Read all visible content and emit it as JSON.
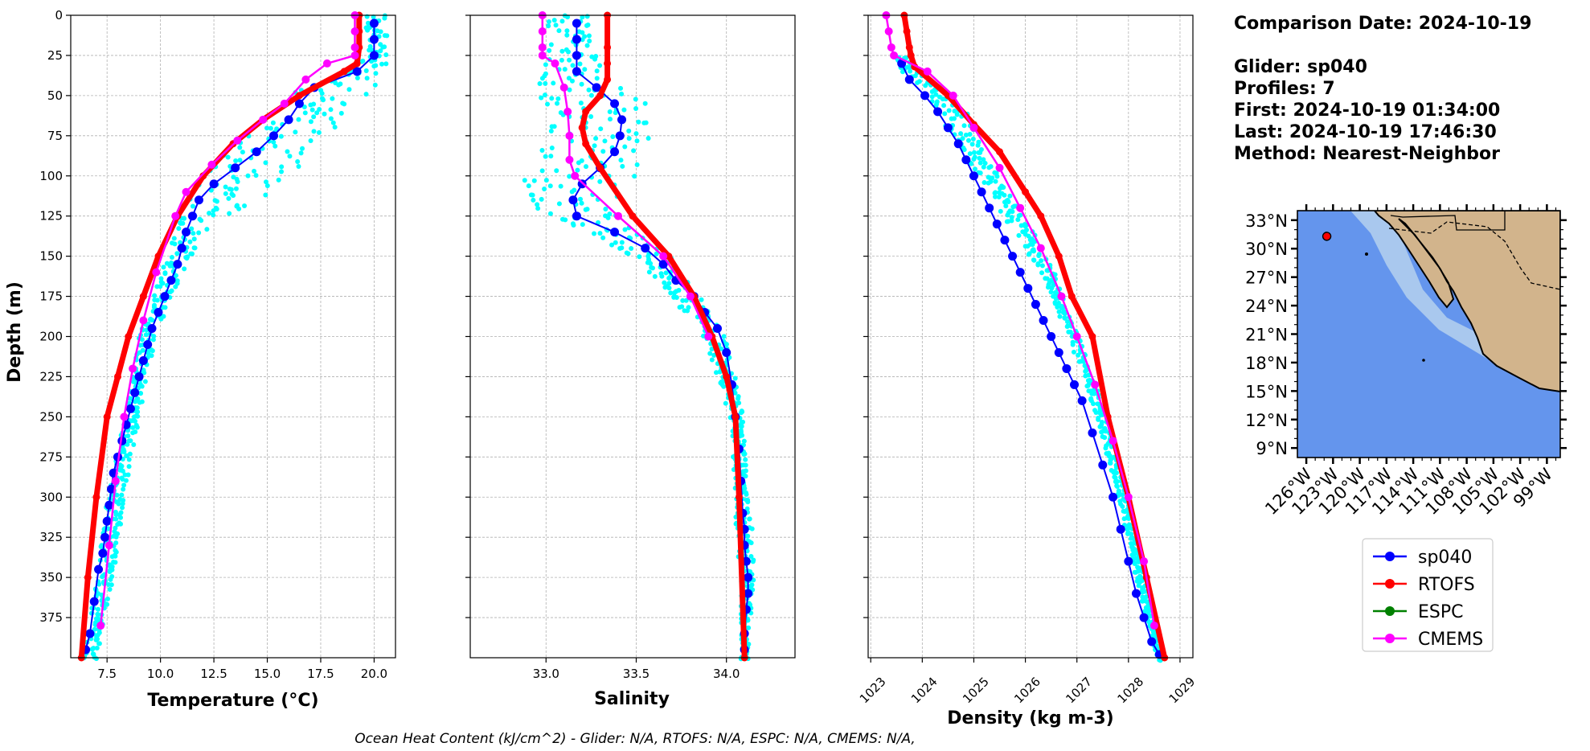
{
  "info": {
    "comparison_date": "Comparison Date: 2024-10-19",
    "glider": "Glider: sp040",
    "profiles": "Profiles: 7",
    "first": "First: 2024-10-19 01:34:00",
    "last": "Last: 2024-10-19 17:46:30",
    "method": "Method: Nearest-Neighbor"
  },
  "footer": "Ocean Heat Content (kJ/cm^2) - Glider: N/A,  RTOFS: N/A,  ESPC: N/A,  CMEMS: N/A,",
  "legend": [
    {
      "name": "sp040",
      "color": "#0000ff"
    },
    {
      "name": "RTOFS",
      "color": "#ff0000"
    },
    {
      "name": "ESPC",
      "color": "#008000"
    },
    {
      "name": "CMEMS",
      "color": "#ff00ff"
    }
  ],
  "colors": {
    "glider_raw": "#00ffff",
    "glider_mean": "#0000ff",
    "rtofs": "#ff0000",
    "cmems": "#ff00ff",
    "ocean": "#6495ed",
    "land": "#d2b48c",
    "shelf": "#a9c8ee"
  },
  "map": {
    "lat_ticks": [
      "33°N",
      "30°N",
      "27°N",
      "24°N",
      "21°N",
      "18°N",
      "15°N",
      "12°N",
      "9°N"
    ],
    "lon_ticks": [
      "126°W",
      "123°W",
      "120°W",
      "117°W",
      "114°W",
      "111°W",
      "108°W",
      "105°W",
      "102°W",
      "99°W"
    ],
    "lat_range": [
      8,
      34
    ],
    "lon_range": [
      -127,
      -97.5
    ],
    "glider_position": {
      "lon": -123.7,
      "lat": 31.3
    }
  },
  "chart_data": [
    {
      "type": "line",
      "xlabel": "Temperature (°C)",
      "ylabel": "Depth (m)",
      "xlim": [
        5.8,
        21.0
      ],
      "ylim": [
        400,
        0
      ],
      "xticks": [
        7.5,
        10.0,
        12.5,
        15.0,
        17.5,
        20.0
      ],
      "yticks": [
        0,
        25,
        50,
        75,
        100,
        125,
        150,
        175,
        200,
        225,
        250,
        275,
        300,
        325,
        350,
        375
      ],
      "grid": true,
      "glider_raw_range": [
        [
          0,
          19.6,
          20.6
        ],
        [
          25,
          19.6,
          20.6
        ],
        [
          35,
          18.5,
          20.6
        ],
        [
          45,
          16.5,
          20.0
        ],
        [
          55,
          15.5,
          19.0
        ],
        [
          65,
          14.8,
          18.5
        ],
        [
          75,
          14.0,
          17.8
        ],
        [
          85,
          13.0,
          17.2
        ],
        [
          95,
          12.0,
          16.8
        ],
        [
          105,
          11.8,
          16.0
        ],
        [
          115,
          11.2,
          14.5
        ],
        [
          125,
          11.0,
          13.0
        ],
        [
          140,
          10.5,
          11.8
        ],
        [
          160,
          10.0,
          11.0
        ],
        [
          180,
          9.5,
          10.3
        ],
        [
          200,
          9.0,
          9.8
        ],
        [
          250,
          8.3,
          9.0
        ],
        [
          300,
          7.5,
          8.3
        ],
        [
          350,
          7.0,
          7.8
        ],
        [
          400,
          6.4,
          7.0
        ]
      ],
      "series": [
        {
          "name": "sp040",
          "role": "mean",
          "x": [
            20.0,
            20.0,
            20.0,
            19.2,
            17.2,
            16.5,
            16.0,
            15.3,
            14.5,
            13.5,
            12.5,
            11.8,
            11.5,
            11.2,
            11.0,
            10.8,
            10.5,
            10.2,
            9.9,
            9.6,
            9.4,
            9.2,
            9.0,
            8.8,
            8.6,
            8.4,
            8.2,
            8.0,
            7.8,
            7.7,
            7.6,
            7.5,
            7.4,
            7.3,
            7.1,
            6.9,
            6.7,
            6.5
          ],
          "y": [
            5,
            15,
            25,
            35,
            45,
            55,
            65,
            75,
            85,
            95,
            105,
            115,
            125,
            135,
            145,
            155,
            165,
            175,
            185,
            195,
            205,
            215,
            225,
            235,
            245,
            255,
            265,
            275,
            285,
            295,
            305,
            315,
            325,
            335,
            345,
            365,
            385,
            395
          ]
        },
        {
          "name": "RTOFS",
          "x": [
            19.3,
            19.3,
            19.3,
            19.2,
            18.6,
            16.5,
            14.8,
            13.4,
            12.0,
            10.8,
            9.9,
            9.2,
            8.5,
            8.0,
            7.5,
            7.0,
            6.6,
            6.3
          ],
          "y": [
            0,
            10,
            20,
            30,
            35,
            50,
            65,
            80,
            100,
            125,
            150,
            175,
            200,
            225,
            250,
            300,
            350,
            400
          ]
        },
        {
          "name": "CMEMS",
          "x": [
            19.1,
            19.1,
            19.1,
            19.1,
            17.8,
            16.8,
            15.8,
            14.8,
            13.6,
            12.4,
            11.2,
            10.7,
            9.8,
            9.2,
            8.7,
            8.3,
            7.9,
            7.6,
            7.2
          ],
          "y": [
            0,
            10,
            20,
            25,
            30,
            40,
            55,
            65,
            78,
            93,
            110,
            125,
            160,
            190,
            220,
            250,
            290,
            330,
            380
          ]
        }
      ]
    },
    {
      "type": "line",
      "xlabel": "Salinity",
      "ylabel": "",
      "xlim": [
        32.58,
        34.38
      ],
      "ylim": [
        400,
        0
      ],
      "xticks": [
        33.0,
        33.5,
        34.0
      ],
      "yticks": [
        0,
        25,
        50,
        75,
        100,
        125,
        150,
        175,
        200,
        225,
        250,
        275,
        300,
        325,
        350,
        375
      ],
      "grid": true,
      "glider_raw_range": [
        [
          0,
          33.0,
          33.25
        ],
        [
          25,
          33.0,
          33.3
        ],
        [
          40,
          32.95,
          33.3
        ],
        [
          50,
          32.95,
          33.55
        ],
        [
          60,
          33.05,
          33.55
        ],
        [
          75,
          33.0,
          33.6
        ],
        [
          90,
          32.95,
          33.55
        ],
        [
          100,
          32.85,
          33.5
        ],
        [
          110,
          32.9,
          33.4
        ],
        [
          120,
          32.95,
          33.35
        ],
        [
          135,
          33.2,
          33.55
        ],
        [
          150,
          33.5,
          33.7
        ],
        [
          175,
          33.7,
          33.85
        ],
        [
          200,
          33.88,
          34.0
        ],
        [
          250,
          34.02,
          34.1
        ],
        [
          300,
          34.05,
          34.12
        ],
        [
          320,
          34.05,
          34.15
        ],
        [
          350,
          34.08,
          34.15
        ],
        [
          400,
          34.08,
          34.12
        ]
      ],
      "series": [
        {
          "name": "sp040",
          "role": "mean",
          "x": [
            33.17,
            33.17,
            33.17,
            33.17,
            33.28,
            33.38,
            33.42,
            33.41,
            33.38,
            33.3,
            33.2,
            33.15,
            33.17,
            33.38,
            33.55,
            33.65,
            33.72,
            33.82,
            33.88,
            33.95,
            34.0,
            34.03,
            34.05,
            34.07,
            34.08,
            34.09,
            34.1,
            34.1,
            34.11,
            34.12,
            34.12,
            34.11,
            34.1,
            34.1
          ],
          "y": [
            5,
            15,
            25,
            35,
            45,
            55,
            65,
            75,
            85,
            95,
            105,
            115,
            125,
            135,
            145,
            155,
            165,
            175,
            185,
            195,
            210,
            230,
            250,
            270,
            290,
            310,
            320,
            330,
            340,
            350,
            360,
            370,
            385,
            395
          ]
        },
        {
          "name": "RTOFS",
          "x": [
            33.34,
            33.34,
            33.34,
            33.34,
            33.3,
            33.22,
            33.2,
            33.22,
            33.3,
            33.48,
            33.68,
            33.82,
            33.92,
            34.0,
            34.05,
            34.07,
            34.1
          ],
          "y": [
            0,
            20,
            30,
            40,
            50,
            60,
            70,
            80,
            95,
            125,
            150,
            175,
            200,
            225,
            250,
            300,
            400
          ]
        },
        {
          "name": "CMEMS",
          "x": [
            32.98,
            32.98,
            32.98,
            32.98,
            33.05,
            33.1,
            33.12,
            33.13,
            33.13,
            33.16,
            33.4,
            33.65,
            33.8,
            33.9
          ],
          "y": [
            0,
            10,
            20,
            25,
            30,
            45,
            60,
            75,
            90,
            100,
            125,
            150,
            175,
            200
          ]
        }
      ]
    },
    {
      "type": "line",
      "xlabel": "Density (kg m-3)",
      "ylabel": "",
      "xlim": [
        1022.95,
        1029.25
      ],
      "ylim": [
        400,
        0
      ],
      "xticks": [
        1023,
        1024,
        1025,
        1026,
        1027,
        1028,
        1029
      ],
      "yticks": [
        0,
        25,
        50,
        75,
        100,
        125,
        150,
        175,
        200,
        225,
        250,
        275,
        300,
        325,
        350,
        375
      ],
      "grid": true,
      "glider_raw_range": [
        [
          25,
          1023.5,
          1023.7
        ],
        [
          35,
          1023.6,
          1024.0
        ],
        [
          45,
          1024.0,
          1024.5
        ],
        [
          60,
          1024.3,
          1024.9
        ],
        [
          75,
          1024.6,
          1025.1
        ],
        [
          90,
          1024.9,
          1025.3
        ],
        [
          105,
          1025.2,
          1025.6
        ],
        [
          120,
          1025.5,
          1025.9
        ],
        [
          135,
          1025.8,
          1026.2
        ],
        [
          150,
          1026.1,
          1026.45
        ],
        [
          175,
          1026.5,
          1026.8
        ],
        [
          200,
          1026.85,
          1027.05
        ],
        [
          250,
          1027.4,
          1027.6
        ],
        [
          300,
          1027.8,
          1028.0
        ],
        [
          350,
          1028.15,
          1028.3
        ],
        [
          400,
          1028.55,
          1028.65
        ]
      ],
      "series": [
        {
          "name": "sp040",
          "role": "mean",
          "x": [
            1023.6,
            1023.75,
            1024.05,
            1024.3,
            1024.5,
            1024.7,
            1024.85,
            1025.0,
            1025.15,
            1025.3,
            1025.45,
            1025.6,
            1025.75,
            1025.9,
            1026.05,
            1026.2,
            1026.35,
            1026.5,
            1026.65,
            1026.8,
            1026.95,
            1027.1,
            1027.3,
            1027.5,
            1027.7,
            1027.85,
            1028.0,
            1028.15,
            1028.3,
            1028.45,
            1028.6
          ],
          "y": [
            30,
            40,
            50,
            60,
            70,
            80,
            90,
            100,
            110,
            120,
            130,
            140,
            150,
            160,
            170,
            180,
            190,
            200,
            210,
            220,
            230,
            240,
            260,
            280,
            300,
            320,
            340,
            360,
            375,
            390,
            398
          ]
        },
        {
          "name": "RTOFS",
          "x": [
            1023.65,
            1023.7,
            1023.75,
            1023.78,
            1023.85,
            1024.5,
            1025.0,
            1025.5,
            1026.0,
            1026.3,
            1026.65,
            1026.9,
            1027.3,
            1027.6,
            1028.0,
            1028.35,
            1028.7
          ],
          "y": [
            0,
            10,
            20,
            25,
            32,
            50,
            68,
            85,
            110,
            125,
            150,
            175,
            200,
            250,
            300,
            350,
            400
          ]
        },
        {
          "name": "CMEMS",
          "x": [
            1023.3,
            1023.35,
            1023.4,
            1023.45,
            1024.1,
            1024.6,
            1025.0,
            1025.5,
            1025.9,
            1026.3,
            1026.7,
            1027.0,
            1027.35,
            1027.7,
            1028.0,
            1028.3,
            1028.5
          ],
          "y": [
            0,
            10,
            20,
            25,
            35,
            50,
            70,
            95,
            120,
            145,
            175,
            200,
            230,
            265,
            300,
            340,
            380
          ]
        }
      ]
    }
  ]
}
